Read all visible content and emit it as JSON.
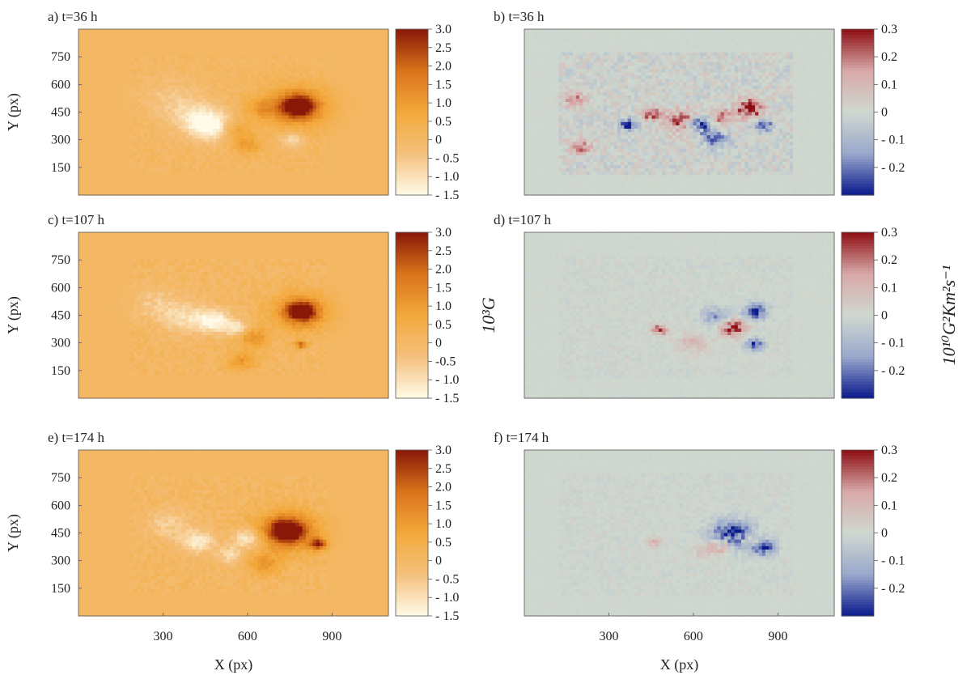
{
  "chart_data": [
    {
      "type": "heatmap",
      "panel_label": "a) t=36 h",
      "xlabel": "",
      "ylabel": "Y (px)",
      "xlim": [
        0,
        1100
      ],
      "ylim": [
        0,
        900
      ],
      "xticks": [],
      "yticks": [
        150,
        300,
        450,
        600,
        750
      ],
      "colorbar": {
        "min": -1.5,
        "max": 3.0,
        "ticks": [
          3.0,
          2.5,
          2.0,
          1.5,
          1.0,
          0.5,
          0,
          -0.5,
          -1.0,
          -1.5
        ],
        "tick_labels": [
          "3.0",
          "2.5",
          "2.0",
          "1.5",
          "1.0",
          "0.5",
          "0",
          "- 0.5",
          "- 1.0",
          "- 1.5"
        ],
        "label": ""
      },
      "colormap": [
        "#fffbe8",
        "#f4c07c",
        "#f3a93b",
        "#d9731a",
        "#8a1808"
      ]
    },
    {
      "type": "heatmap",
      "panel_label": "b) t=36 h",
      "xlabel": "",
      "ylabel": "",
      "xlim": [
        0,
        1100
      ],
      "ylim": [
        0,
        900
      ],
      "xticks": [],
      "yticks": [],
      "colorbar": {
        "min": -0.3,
        "max": 0.3,
        "ticks": [
          0.3,
          0.2,
          0.1,
          0,
          -0.1,
          -0.2
        ],
        "tick_labels": [
          "0.3",
          "0.2",
          "0.1",
          "0",
          "- 0.1",
          "- 0.2"
        ],
        "label": ""
      },
      "colormap": [
        "#0a1a8c",
        "#9aa8cc",
        "#cfd8cf",
        "#d8a8a8",
        "#8c0d12"
      ]
    },
    {
      "type": "heatmap",
      "panel_label": "c) t=107 h",
      "xlabel": "",
      "ylabel": "Y (px)",
      "xlim": [
        0,
        1100
      ],
      "ylim": [
        0,
        900
      ],
      "xticks": [],
      "yticks": [
        150,
        300,
        450,
        600,
        750
      ],
      "colorbar": {
        "min": -1.5,
        "max": 3.0,
        "ticks": [
          3.0,
          2.5,
          2.0,
          1.5,
          1.0,
          0.5,
          0,
          -0.5,
          -1.0,
          -1.5
        ],
        "tick_labels": [
          "3.0",
          "2.5",
          "2.0",
          "1.5",
          "1.0",
          "0.5",
          "0",
          "-0.5",
          "- 1.0",
          "- 1.5"
        ],
        "label": "10³G"
      },
      "colormap": [
        "#fffbe8",
        "#f4c07c",
        "#f3a93b",
        "#d9731a",
        "#8a1808"
      ]
    },
    {
      "type": "heatmap",
      "panel_label": "d) t=107 h",
      "xlabel": "",
      "ylabel": "",
      "xlim": [
        0,
        1100
      ],
      "ylim": [
        0,
        900
      ],
      "xticks": [],
      "yticks": [],
      "colorbar": {
        "min": -0.3,
        "max": 0.3,
        "ticks": [
          0.3,
          0.2,
          0.1,
          0,
          -0.1,
          -0.2
        ],
        "tick_labels": [
          "0.3",
          "0.2",
          "0.1",
          "0",
          "- 0.1",
          "- 0.2"
        ],
        "label": "10¹⁰G²Km²s⁻¹"
      },
      "colormap": [
        "#0a1a8c",
        "#9aa8cc",
        "#cfd8cf",
        "#d8a8a8",
        "#8c0d12"
      ]
    },
    {
      "type": "heatmap",
      "panel_label": "e) t=174 h",
      "xlabel": "X (px)",
      "ylabel": "Y (px)",
      "xlim": [
        0,
        1100
      ],
      "ylim": [
        0,
        900
      ],
      "xticks": [
        300,
        600,
        900
      ],
      "yticks": [
        150,
        300,
        450,
        600,
        750
      ],
      "colorbar": {
        "min": -1.5,
        "max": 3.0,
        "ticks": [
          3.0,
          2.5,
          2.0,
          1.5,
          1.0,
          0.5,
          0,
          -0.5,
          -1.0,
          -1.5
        ],
        "tick_labels": [
          "3.0",
          "2.5",
          "2.0",
          "1.5",
          "1.0",
          "0.5",
          "0",
          "- 0.5",
          "- 1.0",
          "- 1.5"
        ],
        "label": ""
      },
      "colormap": [
        "#fffbe8",
        "#f4c07c",
        "#f3a93b",
        "#d9731a",
        "#8a1808"
      ]
    },
    {
      "type": "heatmap",
      "panel_label": "f) t=174 h",
      "xlabel": "X (px)",
      "ylabel": "",
      "xlim": [
        0,
        1100
      ],
      "ylim": [
        0,
        900
      ],
      "xticks": [
        300,
        600,
        900
      ],
      "yticks": [],
      "colorbar": {
        "min": -0.3,
        "max": 0.3,
        "ticks": [
          0.3,
          0.2,
          0.1,
          0,
          -0.1,
          -0.2
        ],
        "tick_labels": [
          "0.3",
          "0.2",
          "0.1",
          "0",
          "- 0.1",
          "- 0.2"
        ],
        "label": ""
      },
      "colormap": [
        "#0a1a8c",
        "#9aa8cc",
        "#cfd8cf",
        "#d8a8a8",
        "#8c0d12"
      ]
    }
  ]
}
